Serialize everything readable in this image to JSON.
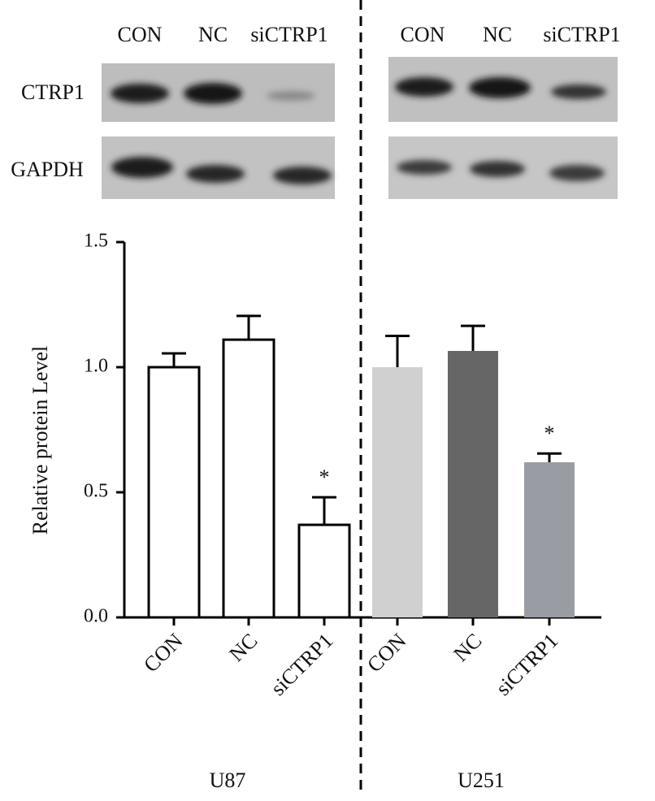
{
  "chart_data": {
    "type": "bar",
    "categories": [
      "CON",
      "NC",
      "siCTRP1",
      "CON",
      "NC",
      "siCTRP1"
    ],
    "groups": [
      "U87",
      "U251"
    ],
    "values": [
      1.0,
      1.11,
      0.37,
      1.0,
      1.065,
      0.62
    ],
    "errors": [
      0.055,
      0.095,
      0.11,
      0.125,
      0.1,
      0.035
    ],
    "colors": [
      "#ffffff",
      "#ffffff",
      "#ffffff",
      "#d0d0d0",
      "#666666",
      "#9a9ca3"
    ],
    "edgecolor": "#000000",
    "ylabel": "Relative protein Level",
    "ylim": [
      0,
      1.5
    ],
    "yticks": [
      {
        "value": 0,
        "label": "0.0"
      },
      0.5,
      {
        "value": 1,
        "label": "1.0"
      },
      1.5
    ],
    "annotations": [
      "*",
      "*"
    ],
    "blot_rows": [
      "CTRP1",
      "GAPDH"
    ]
  }
}
